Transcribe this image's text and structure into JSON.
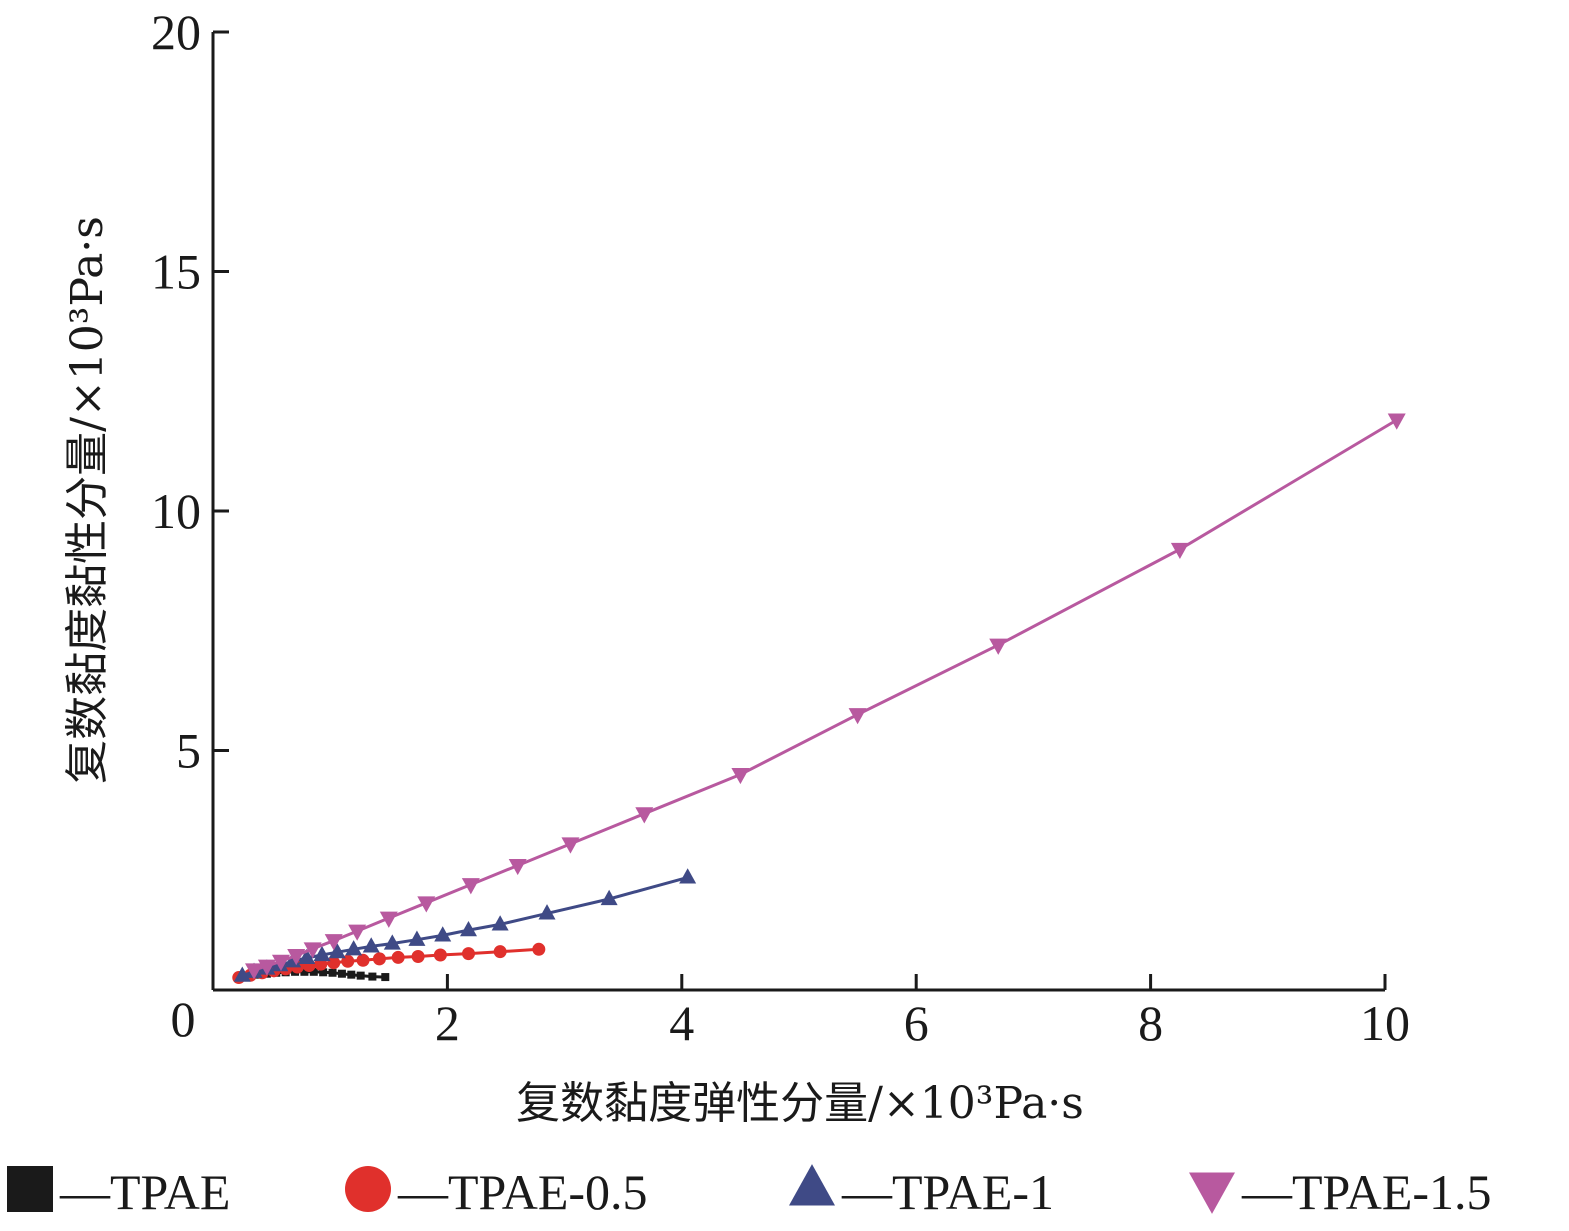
{
  "chart_data": {
    "type": "line",
    "title": "",
    "xlabel": "复数黏度弹性分量/×10³Pa·s",
    "ylabel": "复数黏度黏性分量/×10³Pa·s",
    "xlim": [
      0,
      10
    ],
    "ylim": [
      0,
      20
    ],
    "xticks": [
      "0",
      "2",
      "4",
      "6",
      "8",
      "10"
    ],
    "yticks": [
      "5",
      "10",
      "15",
      "20"
    ],
    "origin_label": "0",
    "grid": false,
    "legend_position": "bottom",
    "series": [
      {
        "name": "—TPAE",
        "marker": "square",
        "color": "#1a1a1a",
        "x": [
          0.22,
          0.3,
          0.38,
          0.46,
          0.54,
          0.62,
          0.7,
          0.78,
          0.86,
          0.94,
          1.02,
          1.1,
          1.18,
          1.26,
          1.36,
          1.47
        ],
        "y": [
          0.25,
          0.29,
          0.32,
          0.34,
          0.36,
          0.37,
          0.38,
          0.38,
          0.38,
          0.37,
          0.36,
          0.34,
          0.32,
          0.3,
          0.28,
          0.27
        ]
      },
      {
        "name": "—TPAE-0.5",
        "marker": "circle",
        "color": "#e0302c",
        "x": [
          0.22,
          0.32,
          0.42,
          0.52,
          0.62,
          0.72,
          0.82,
          0.92,
          1.03,
          1.15,
          1.28,
          1.42,
          1.58,
          1.75,
          1.94,
          2.18,
          2.45,
          2.78
        ],
        "y": [
          0.26,
          0.31,
          0.36,
          0.4,
          0.44,
          0.48,
          0.51,
          0.54,
          0.57,
          0.6,
          0.62,
          0.65,
          0.68,
          0.7,
          0.73,
          0.76,
          0.8,
          0.85
        ]
      },
      {
        "name": "—TPAE-1",
        "marker": "triangle-up",
        "color": "#3f4a86",
        "x": [
          0.25,
          0.35,
          0.46,
          0.57,
          0.68,
          0.8,
          0.93,
          1.06,
          1.2,
          1.35,
          1.53,
          1.74,
          1.96,
          2.18,
          2.45,
          2.85,
          3.38,
          4.05
        ],
        "y": [
          0.3,
          0.38,
          0.45,
          0.52,
          0.6,
          0.67,
          0.73,
          0.79,
          0.85,
          0.91,
          0.97,
          1.05,
          1.14,
          1.25,
          1.37,
          1.6,
          1.9,
          2.35
        ]
      },
      {
        "name": "—TPAE-1.5",
        "marker": "triangle-down",
        "color": "#b8599f",
        "x": [
          0.35,
          0.46,
          0.58,
          0.71,
          0.85,
          1.03,
          1.23,
          1.5,
          1.82,
          2.2,
          2.6,
          3.05,
          3.68,
          4.5,
          5.5,
          6.7,
          8.25,
          10.1
        ],
        "y": [
          0.42,
          0.5,
          0.6,
          0.72,
          0.86,
          1.03,
          1.23,
          1.5,
          1.82,
          2.2,
          2.6,
          3.05,
          3.68,
          4.5,
          5.75,
          7.2,
          9.2,
          11.9
        ]
      }
    ]
  }
}
